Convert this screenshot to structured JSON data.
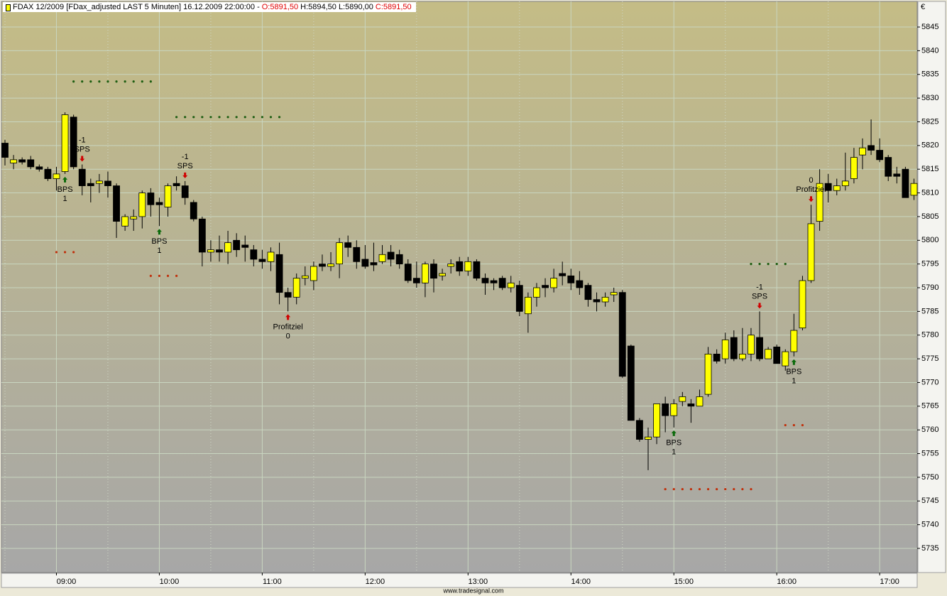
{
  "chart_data": {
    "type": "candlestick",
    "title": "FDAX 12/2009 [FDax_adjusted LAST 5 Minuten] 16.12.2009 22:00:00 -",
    "ohlc": [
      "O:5891,50",
      "H:5894,50 L:5890,00",
      "C:5891,50"
    ],
    "ohlc_colors": [
      "#e00000",
      "#000000",
      "#e00000"
    ],
    "currency": "€",
    "footer": "www.tradesignal.com",
    "up_color": "#ffff00",
    "down_color": "#000000",
    "grid": true,
    "x": [
      "08:30",
      "08:35",
      "08:40",
      "08:45",
      "08:50",
      "08:55",
      "09:00",
      "09:05",
      "09:10",
      "09:15",
      "09:20",
      "09:25",
      "09:30",
      "09:35",
      "09:40",
      "09:45",
      "09:50",
      "09:55",
      "10:00",
      "10:05",
      "10:10",
      "10:15",
      "10:20",
      "10:25",
      "10:30",
      "10:35",
      "10:40",
      "10:45",
      "10:50",
      "10:55",
      "11:00",
      "11:05",
      "11:10",
      "11:15",
      "11:20",
      "11:25",
      "11:30",
      "11:35",
      "11:40",
      "11:45",
      "11:50",
      "11:55",
      "12:00",
      "12:05",
      "12:10",
      "12:15",
      "12:20",
      "12:25",
      "12:30",
      "12:35",
      "12:40",
      "12:45",
      "12:50",
      "12:55",
      "13:00",
      "13:05",
      "13:10",
      "13:15",
      "13:20",
      "13:25",
      "13:30",
      "13:35",
      "13:40",
      "13:45",
      "13:50",
      "13:55",
      "14:00",
      "14:05",
      "14:10",
      "14:15",
      "14:20",
      "14:25",
      "14:30",
      "14:35",
      "14:40",
      "14:45",
      "14:50",
      "14:55",
      "15:00",
      "15:05",
      "15:10",
      "15:15",
      "15:20",
      "15:25",
      "15:30",
      "15:35",
      "15:40",
      "15:45",
      "15:50",
      "15:55",
      "16:00",
      "16:05",
      "16:10",
      "16:15",
      "16:20",
      "16:25",
      "16:30",
      "16:35",
      "16:40",
      "16:45",
      "16:50",
      "16:55",
      "17:00",
      "17:05",
      "17:10",
      "17:15",
      "17:20"
    ],
    "open": [
      5820.5,
      5816.3,
      5817,
      5817,
      5815.5,
      5815,
      5813,
      5814.5,
      5826,
      5815,
      5812,
      5812,
      5812.5,
      5811.5,
      5803,
      5804.5,
      5805,
      5810,
      5808,
      5807,
      5812,
      5811.5,
      5808,
      5804.5,
      5797.5,
      5798,
      5797.5,
      5800,
      5799,
      5798,
      5796,
      5795.5,
      5797,
      5789,
      5788,
      5792,
      5791.5,
      5795,
      5794.5,
      5795,
      5799.5,
      5798.5,
      5796,
      5795.3,
      5795.5,
      5797.5,
      5797,
      5795,
      5792,
      5791,
      5795,
      5792.5,
      5794.5,
      5795.5,
      5793.5,
      5795.5,
      5792,
      5791.5,
      5792,
      5790,
      5790.5,
      5784.5,
      5788,
      5790.5,
      5790,
      5793,
      5792.5,
      5791.5,
      5790.5,
      5787.5,
      5787,
      5788.5,
      5789,
      5777.7,
      5762,
      5758,
      5758.5,
      5765.5,
      5763,
      5766,
      5765.5,
      5765,
      5767.5,
      5776,
      5775,
      5779.5,
      5775,
      5776,
      5779.5,
      5775,
      5777.5,
      5773.5,
      5776.5,
      5781.5,
      5791.5,
      5804,
      5812,
      5810.5,
      5811.5,
      5813,
      5818,
      5820,
      5819,
      5817.5,
      5814,
      5815,
      5809.5
    ],
    "high": [
      5821.2,
      5818,
      5817.5,
      5817.8,
      5816,
      5815.5,
      5815.5,
      5827,
      5826.5,
      5816,
      5813,
      5814,
      5814.5,
      5812,
      5805.5,
      5806.5,
      5810.5,
      5811,
      5809,
      5812,
      5813.5,
      5812.5,
      5808.5,
      5805,
      5800,
      5801,
      5802,
      5801.5,
      5801,
      5799,
      5798,
      5798.5,
      5799.5,
      5790,
      5793,
      5794.5,
      5795.5,
      5797,
      5797.5,
      5800.5,
      5801,
      5800,
      5799,
      5799.5,
      5799,
      5799,
      5798,
      5796,
      5795.5,
      5795.5,
      5796,
      5794,
      5796,
      5796.5,
      5796.5,
      5796,
      5793,
      5792,
      5792.5,
      5792.5,
      5791.5,
      5789,
      5791,
      5792,
      5794,
      5795.5,
      5794,
      5793.5,
      5791,
      5789,
      5789,
      5790,
      5789.5,
      5778,
      5762.5,
      5760.5,
      5765.5,
      5767,
      5766.5,
      5768,
      5766.5,
      5768.5,
      5777.5,
      5777,
      5780.5,
      5781,
      5781.5,
      5781.5,
      5785,
      5777.5,
      5778,
      5777,
      5784.5,
      5792.5,
      5807.5,
      5815,
      5814,
      5813,
      5818.5,
      5819.5,
      5821.5,
      5825.5,
      5821.5,
      5818,
      5815.5,
      5815.5,
      5813
    ],
    "low": [
      5815.8,
      5815,
      5816,
      5815,
      5814.5,
      5812.5,
      5810.5,
      5814,
      5815,
      5809.5,
      5808,
      5810,
      5809,
      5800.5,
      5802,
      5802,
      5802.5,
      5805,
      5803,
      5805,
      5810.5,
      5807.5,
      5804,
      5794.5,
      5795.5,
      5795.5,
      5795,
      5796.5,
      5795.5,
      5794.5,
      5794,
      5793.5,
      5786.5,
      5785,
      5786.5,
      5790.5,
      5789.5,
      5793.5,
      5793.5,
      5792,
      5796.5,
      5794,
      5794,
      5793.5,
      5795,
      5794.5,
      5794,
      5791,
      5790,
      5788,
      5789,
      5791.5,
      5793,
      5792.5,
      5792.5,
      5791.5,
      5788.5,
      5789.5,
      5789.5,
      5789,
      5784,
      5780.5,
      5786,
      5788,
      5789,
      5790.5,
      5789.5,
      5788.5,
      5786,
      5785,
      5786,
      5787,
      5771,
      5762,
      5757.5,
      5751.5,
      5757,
      5759.5,
      5760.5,
      5765,
      5761.5,
      5765,
      5767,
      5774,
      5774,
      5774.5,
      5774.5,
      5774.5,
      5774.5,
      5775,
      5774,
      5772.5,
      5775.5,
      5781,
      5791,
      5802,
      5808,
      5809.5,
      5810.5,
      5812,
      5815,
      5818,
      5816.5,
      5812.5,
      5812,
      5809,
      5808.5
    ],
    "close": [
      5817.5,
      5817,
      5816.5,
      5815.5,
      5815,
      5813,
      5814,
      5826.5,
      5815.5,
      5811.5,
      5811.5,
      5812.5,
      5811.5,
      5804,
      5805,
      5805,
      5810,
      5807.5,
      5807.5,
      5811.5,
      5811.5,
      5809,
      5804.5,
      5797.5,
      5798,
      5797.5,
      5799.5,
      5798,
      5798.5,
      5796,
      5795.5,
      5797.5,
      5789,
      5788,
      5792,
      5792.5,
      5794.5,
      5794.5,
      5795,
      5799.5,
      5798.5,
      5795.5,
      5794.5,
      5794.8,
      5797,
      5796,
      5795,
      5791.5,
      5791,
      5795,
      5792,
      5793,
      5795,
      5793.5,
      5795.5,
      5792,
      5791,
      5791,
      5790,
      5791,
      5785,
      5788,
      5790,
      5790,
      5792,
      5792.5,
      5791,
      5790,
      5787.5,
      5787,
      5788,
      5789,
      5771.3,
      5762,
      5758,
      5758.5,
      5765.5,
      5763,
      5765.5,
      5767,
      5765,
      5767,
      5776,
      5774.5,
      5779,
      5775,
      5776,
      5780,
      5775,
      5777,
      5774,
      5776.5,
      5781,
      5791.5,
      5803.5,
      5812,
      5810.5,
      5811.5,
      5812.5,
      5817.5,
      5819.5,
      5819,
      5817,
      5813.5,
      5813.5,
      5809,
      5812
    ],
    "ylim": [
      5729.9,
      5850.4
    ],
    "yticks": [
      5735,
      5740,
      5745,
      5750,
      5755,
      5760,
      5765,
      5770,
      5775,
      5780,
      5785,
      5790,
      5795,
      5800,
      5805,
      5810,
      5815,
      5820,
      5825,
      5830,
      5835,
      5840,
      5845
    ],
    "xticks": [
      "09:00",
      "10:00",
      "11:00",
      "12:00",
      "13:00",
      "14:00",
      "15:00",
      "16:00",
      "17:00"
    ],
    "levels": [
      {
        "value": 5833.5,
        "from": "09:10",
        "to": "09:55",
        "color": "#1e5e12"
      },
      {
        "value": 5826,
        "from": "10:10",
        "to": "11:10",
        "color": "#1e5e12"
      },
      {
        "value": 5797.5,
        "from": "09:00",
        "to": "09:10",
        "color": "#c0300c"
      },
      {
        "value": 5792.5,
        "from": "09:55",
        "to": "10:10",
        "color": "#c0300c"
      },
      {
        "value": 5795,
        "from": "15:45",
        "to": "16:05",
        "color": "#1e5e12"
      },
      {
        "value": 5761,
        "from": "16:05",
        "to": "16:15",
        "color": "#c0300c"
      },
      {
        "value": 5747.5,
        "from": "14:55",
        "to": "15:45",
        "color": "#c0300c"
      }
    ],
    "annotations": [
      {
        "x": "09:05",
        "side": "below",
        "lines": [
          "BPS",
          "1"
        ],
        "color": "#0a6a0a"
      },
      {
        "x": "09:15",
        "side": "above",
        "lines": [
          "-1",
          "SPS"
        ],
        "color": "#d00000"
      },
      {
        "x": "10:00",
        "side": "below",
        "lines": [
          "BPS",
          "1"
        ],
        "color": "#0a6a0a"
      },
      {
        "x": "10:15",
        "side": "above",
        "lines": [
          "-1",
          "SPS"
        ],
        "color": "#d00000"
      },
      {
        "x": "11:15",
        "side": "below",
        "lines": [
          "Profitziel",
          "0"
        ],
        "color": "#d00000"
      },
      {
        "x": "15:00",
        "side": "below",
        "lines": [
          "BPS",
          "1"
        ],
        "color": "#0a6a0a"
      },
      {
        "x": "15:50",
        "side": "above",
        "lines": [
          "-1",
          "SPS"
        ],
        "color": "#d00000"
      },
      {
        "x": "16:10",
        "side": "below",
        "lines": [
          "BPS",
          "1"
        ],
        "color": "#0a6a0a"
      },
      {
        "x": "16:20",
        "side": "above",
        "lines": [
          "0",
          "Profitziel"
        ],
        "color": "#d00000"
      }
    ]
  }
}
